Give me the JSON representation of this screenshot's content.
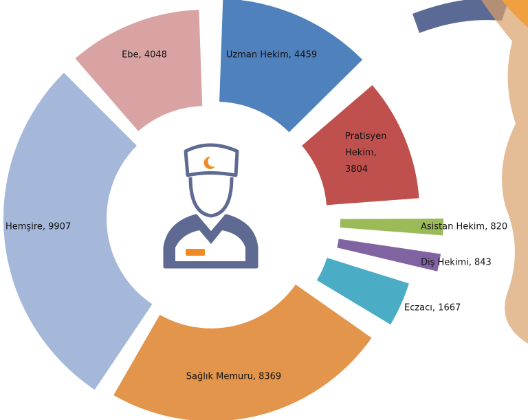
{
  "chart_data": {
    "type": "pie",
    "labels": [
      "Uzman Hekim, 4459",
      "Pratisyen Hekim, 3804",
      "Asistan  Hekim, 820",
      "Diş Hekimi, 843",
      "Eczacı, 1667",
      "Sağlık Memuru, 8369",
      "Hemşire, 9907",
      "Ebe, 4048"
    ],
    "values": [
      4459,
      3804,
      820,
      843,
      1667,
      8369,
      9907,
      4048
    ],
    "colors": [
      "#4f81bd",
      "#c0504d",
      "#9bbb59",
      "#8064a2",
      "#4bacc6",
      "#e2954b",
      "#a5b8da",
      "#d9a3a3"
    ]
  }
}
